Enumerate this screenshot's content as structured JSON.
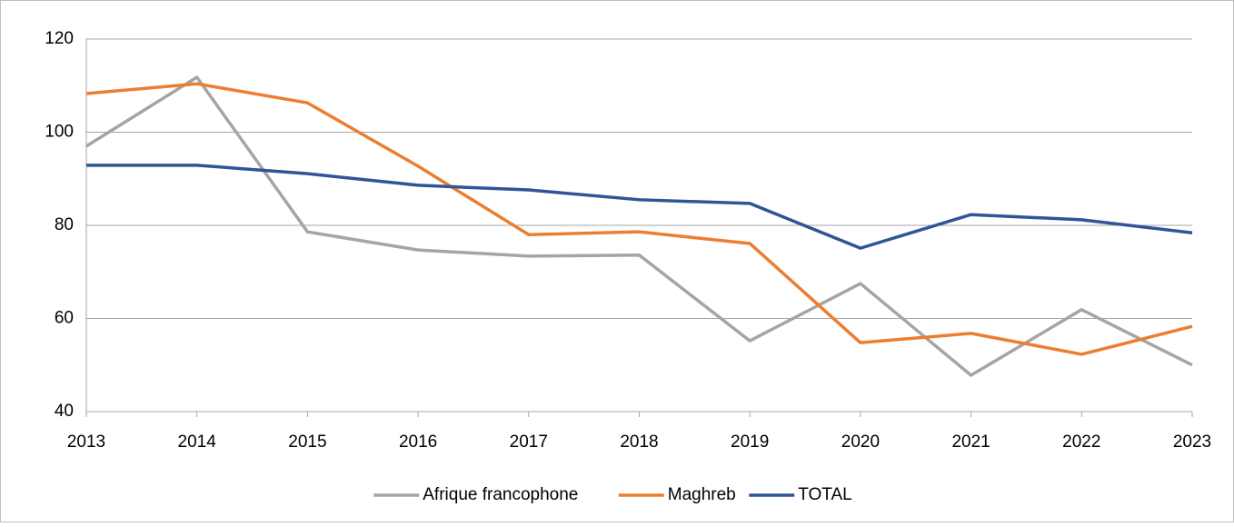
{
  "chart_data": {
    "type": "line",
    "categories": [
      "2013",
      "2014",
      "2015",
      "2016",
      "2017",
      "2018",
      "2019",
      "2020",
      "2021",
      "2022",
      "2023"
    ],
    "series": [
      {
        "name": "Afrique francophone",
        "color": "#a5a5a5",
        "values": [
          97,
          111.8,
          78.6,
          74.7,
          73.4,
          73.6,
          55.2,
          67.5,
          47.8,
          61.9,
          50
        ]
      },
      {
        "name": "Maghreb",
        "color": "#ed7d31",
        "values": [
          108.3,
          110.4,
          106.3,
          92.7,
          78,
          78.6,
          76.1,
          54.8,
          56.8,
          52.3,
          58.3
        ]
      },
      {
        "name": "TOTAL",
        "color": "#2f5597",
        "values": [
          92.9,
          92.9,
          91.1,
          88.6,
          87.6,
          85.5,
          84.7,
          75.1,
          82.3,
          81.2,
          78.4
        ]
      }
    ],
    "ylim": [
      40,
      120
    ],
    "yticks": [
      40,
      60,
      80,
      100,
      120
    ],
    "grid": true,
    "legend": "bottom"
  }
}
